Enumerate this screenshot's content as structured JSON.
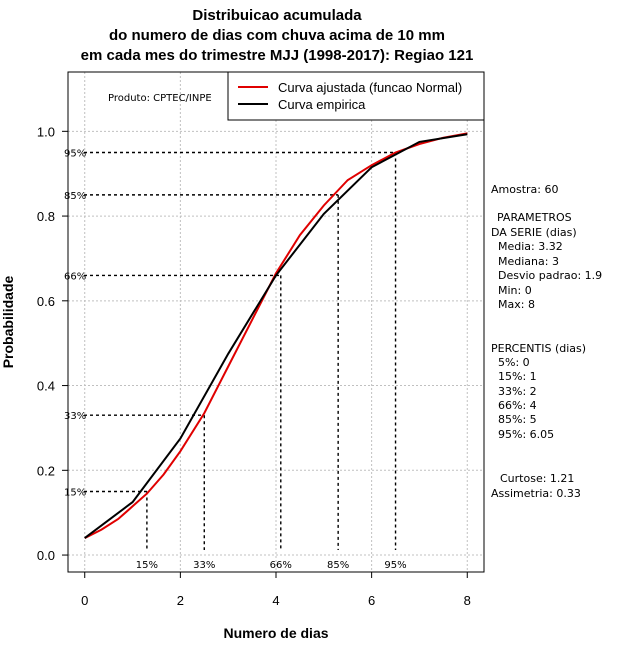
{
  "chart_data": {
    "type": "line",
    "title": [
      "Distribuicao acumulada",
      "do numero de dias com chuva acima de 10 mm",
      "em cada mes do trimestre MJJ (1998-2017): Regiao 121"
    ],
    "xlabel": "Numero de dias",
    "ylabel": "Probabilidade",
    "xlim": [
      -0.35,
      8.35
    ],
    "ylim": [
      -0.04,
      1.14
    ],
    "xticks": [
      0,
      2,
      4,
      6,
      8
    ],
    "yticks": [
      0.0,
      0.2,
      0.4,
      0.6,
      0.8,
      1.0
    ],
    "product_label": "Produto: CPTEC/INPE",
    "legend": {
      "placement": "top-right",
      "entries": [
        {
          "label": "Curva ajustada (funcao Normal)",
          "color": "#e00000"
        },
        {
          "label": "Curva empirica",
          "color": "#000000"
        }
      ]
    },
    "series": [
      {
        "name": "Curva ajustada (funcao Normal)",
        "color": "#e00000",
        "x": [
          0,
          0.35,
          0.7,
          1.0,
          1.3,
          1.65,
          2.0,
          2.5,
          3.0,
          3.5,
          4.0,
          4.5,
          5.0,
          5.5,
          6.0,
          6.5,
          7.0,
          7.5,
          8.0
        ],
        "y": [
          0.04,
          0.06,
          0.085,
          0.115,
          0.145,
          0.19,
          0.245,
          0.335,
          0.445,
          0.555,
          0.665,
          0.755,
          0.825,
          0.885,
          0.92,
          0.95,
          0.97,
          0.985,
          0.995
        ]
      },
      {
        "name": "Curva empirica",
        "color": "#000000",
        "x": [
          0,
          1,
          2,
          3,
          4,
          5,
          6,
          7,
          8
        ],
        "y": [
          0.04,
          0.125,
          0.275,
          0.475,
          0.66,
          0.805,
          0.915,
          0.975,
          0.993
        ]
      }
    ],
    "percentile_lines": [
      {
        "label": "15%",
        "y": 0.15,
        "x": 1.3
      },
      {
        "label": "33%",
        "y": 0.33,
        "x": 2.5
      },
      {
        "label": "66%",
        "y": 0.66,
        "x": 4.1
      },
      {
        "label": "85%",
        "y": 0.85,
        "x": 5.3
      },
      {
        "label": "95%",
        "y": 0.95,
        "x": 6.5
      }
    ],
    "side_text": {
      "sample": "Amostra: 60",
      "params_title_1": "PARAMETROS",
      "params_title_2": "DA SERIE (dias)",
      "params": [
        "Media: 3.32",
        "Mediana: 3",
        "Desvio padrao: 1.9",
        "Min: 0",
        "Max: 8"
      ],
      "percentiles_title": "PERCENTIS (dias)",
      "percentiles": [
        "5%: 0",
        "15%: 1",
        "33%: 2",
        "66%: 4",
        "85%: 5",
        "95%: 6.05"
      ],
      "kurtosis": "Curtose: 1.21",
      "skewness": "Assimetria: 0.33"
    }
  }
}
